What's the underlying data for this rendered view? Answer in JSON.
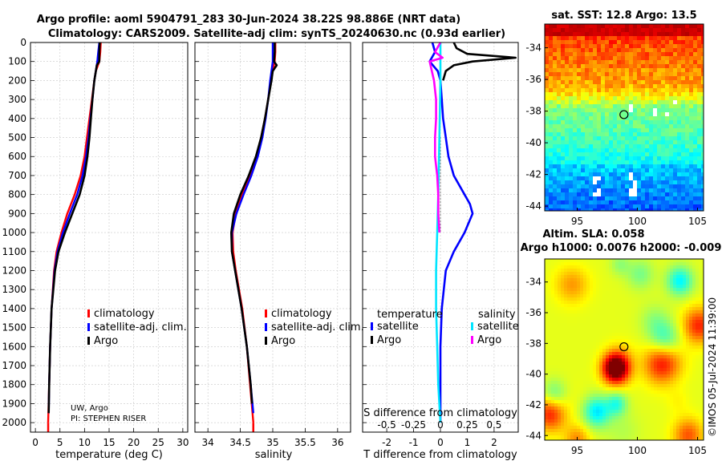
{
  "title": {
    "line1": "Argo profile: aoml 5904791_283 30-Jun-2024 38.22S 98.886E (NRT data)",
    "line2": "Climatology: CARS2009. Satellite-adj clim: synTS_20240630.nc (0.93d earlier)"
  },
  "colors": {
    "climatology": "#ff0000",
    "satellite": "#0000ff",
    "argo": "#000000",
    "sat_temp_diff": "#0000ff",
    "sat_sal_diff": "#00e5ff",
    "argo_sal_diff": "#ff00ff"
  },
  "credit": {
    "line1": "UW, Argo",
    "line2": "PI: STEPHEN RISER"
  },
  "footer": "©IMOS 05-Jul-2024 11:39:00",
  "chart_data": [
    {
      "id": "temperature",
      "type": "line",
      "xlabel": "temperature (deg C)",
      "ylabel": "",
      "xlim": [
        -1,
        31
      ],
      "ylim": [
        2050,
        0
      ],
      "xticks": [
        0,
        5,
        10,
        15,
        20,
        25,
        30
      ],
      "yticks": [
        0,
        100,
        200,
        300,
        400,
        500,
        600,
        700,
        800,
        900,
        1000,
        1100,
        1200,
        1300,
        1400,
        1500,
        1600,
        1700,
        1800,
        1900,
        2000
      ],
      "grid": true,
      "legend": {
        "position": "center-right",
        "entries": [
          "climatology",
          "satellite-adj. clim.",
          "Argo"
        ]
      },
      "series": [
        {
          "name": "climatology",
          "color_key": "climatology",
          "depth": [
            0,
            50,
            100,
            150,
            200,
            300,
            400,
            500,
            600,
            700,
            800,
            900,
            1000,
            1100,
            1200,
            1400,
            1600,
            1800,
            2000
          ],
          "values": [
            13.3,
            13.2,
            13.0,
            12.3,
            12.0,
            11.5,
            11.0,
            10.5,
            10.0,
            9.2,
            8.0,
            6.5,
            5.3,
            4.3,
            3.8,
            3.3,
            3.0,
            2.8,
            2.6
          ]
        },
        {
          "name": "satellite-adj. clim.",
          "color_key": "satellite",
          "depth": [
            0,
            50,
            100,
            150,
            200,
            300,
            400,
            500,
            600,
            700,
            800,
            900,
            1000,
            1100,
            1200,
            1400,
            1600,
            1800,
            1950
          ],
          "values": [
            13.0,
            12.8,
            12.6,
            12.3,
            12.0,
            11.6,
            11.2,
            10.8,
            10.3,
            9.6,
            8.5,
            7.0,
            5.6,
            4.5,
            3.9,
            3.3,
            3.0,
            2.8,
            2.7
          ]
        },
        {
          "name": "Argo",
          "color_key": "argo",
          "depth": [
            0,
            50,
            100,
            120,
            150,
            200,
            300,
            400,
            500,
            600,
            700,
            800,
            900,
            1000,
            1100,
            1200,
            1400,
            1600,
            1800,
            1950
          ],
          "values": [
            13.1,
            13.0,
            13.0,
            12.5,
            12.3,
            12.0,
            11.6,
            11.3,
            11.0,
            10.6,
            10.0,
            9.0,
            7.5,
            6.0,
            4.7,
            4.0,
            3.3,
            3.0,
            2.8,
            2.7
          ]
        }
      ]
    },
    {
      "id": "salinity",
      "type": "line",
      "xlabel": "salinity",
      "ylabel": "",
      "xlim": [
        33.8,
        36.2
      ],
      "ylim": [
        2050,
        0
      ],
      "xticks": [
        34,
        34.5,
        35,
        35.5,
        36
      ],
      "grid": true,
      "legend": {
        "position": "center-right",
        "entries": [
          "climatology",
          "satellite-adj. clim.",
          "Argo"
        ]
      },
      "series": [
        {
          "name": "climatology",
          "color_key": "climatology",
          "depth": [
            0,
            50,
            100,
            150,
            200,
            300,
            400,
            500,
            600,
            700,
            800,
            900,
            1000,
            1100,
            1200,
            1400,
            1600,
            1800,
            2000
          ],
          "values": [
            35.04,
            35.04,
            35.03,
            35.0,
            34.97,
            34.93,
            34.88,
            34.82,
            34.75,
            34.65,
            34.53,
            34.43,
            34.38,
            34.39,
            34.43,
            34.53,
            34.6,
            34.65,
            34.7
          ]
        },
        {
          "name": "satellite-adj. clim.",
          "color_key": "satellite",
          "depth": [
            0,
            50,
            100,
            150,
            200,
            300,
            400,
            500,
            600,
            700,
            800,
            900,
            1000,
            1100,
            1200,
            1400,
            1600,
            1800,
            1950
          ],
          "values": [
            35.0,
            35.0,
            35.0,
            34.98,
            34.96,
            34.93,
            34.89,
            34.84,
            34.77,
            34.67,
            34.55,
            34.44,
            34.37,
            34.37,
            34.42,
            34.52,
            34.6,
            34.66,
            34.7
          ]
        },
        {
          "name": "Argo",
          "color_key": "argo",
          "depth": [
            0,
            50,
            100,
            120,
            150,
            200,
            300,
            400,
            500,
            600,
            700,
            800,
            900,
            1000,
            1100,
            1200,
            1400,
            1600,
            1800,
            1900
          ],
          "values": [
            35.03,
            35.03,
            35.02,
            35.06,
            35.0,
            34.98,
            34.93,
            34.88,
            34.82,
            34.74,
            34.63,
            34.5,
            34.4,
            34.36,
            34.37,
            34.42,
            34.52,
            34.6,
            34.66,
            34.68
          ]
        }
      ]
    },
    {
      "id": "difference",
      "type": "line",
      "xlabel": "T difference from climatology",
      "x2label": "S difference from climatology",
      "xlim": [
        -2.9,
        2.9
      ],
      "ylim": [
        2050,
        0
      ],
      "xticks": [
        -2,
        -1,
        0,
        1,
        2
      ],
      "xticklabels": [
        "-2",
        "-1",
        "0",
        "1",
        "2"
      ],
      "x2ticklabels": [
        "-0.5",
        "-0.25",
        "0",
        "0.25",
        "0.5"
      ],
      "grid": true,
      "legend": {
        "position": "center",
        "temperature_title": "temperature",
        "salinity_title": "salinity",
        "entries": [
          "satellite",
          "Argo",
          "satellite",
          "Argo"
        ]
      },
      "series": [
        {
          "name": "temperature satellite",
          "color_key": "sat_temp_diff",
          "depth": [
            0,
            50,
            100,
            150,
            200,
            300,
            400,
            500,
            600,
            700,
            800,
            850,
            900,
            1000,
            1100,
            1200,
            1400,
            1600,
            1800,
            2000
          ],
          "values": [
            -0.3,
            -0.2,
            -0.4,
            -0.1,
            0.0,
            0.05,
            0.1,
            0.2,
            0.3,
            0.5,
            0.9,
            1.1,
            1.2,
            0.9,
            0.5,
            0.2,
            0.05,
            0.0,
            0.0,
            0.0
          ]
        },
        {
          "name": "temperature Argo",
          "color_key": "argo",
          "depth": [
            0,
            30,
            60,
            80,
            100,
            120,
            150,
            200
          ],
          "values": [
            0.5,
            0.6,
            1.0,
            2.8,
            1.2,
            0.5,
            0.2,
            0.1
          ]
        },
        {
          "name": "salinity satellite",
          "color_key": "sat_sal_diff",
          "depth": [
            0,
            200,
            500,
            800,
            1000,
            1200,
            1400,
            1600,
            1800,
            2000
          ],
          "values": [
            0.0,
            0.0,
            -0.01,
            -0.02,
            -0.03,
            -0.04,
            -0.04,
            -0.03,
            -0.02,
            0.0
          ]
        },
        {
          "name": "salinity Argo",
          "color_key": "argo_sal_diff",
          "depth": [
            0,
            50,
            80,
            100,
            150,
            200,
            300,
            400,
            500,
            600,
            700,
            800,
            900,
            1000
          ],
          "values": [
            0.0,
            -0.05,
            0.02,
            -0.1,
            -0.08,
            -0.06,
            -0.04,
            -0.04,
            -0.05,
            -0.05,
            -0.03,
            -0.02,
            -0.02,
            -0.01
          ]
        }
      ]
    },
    {
      "id": "sst_map",
      "type": "heatmap",
      "title": "sat. SST: 12.8 Argo: 13.5",
      "xlim": [
        92.3,
        105.5
      ],
      "ylim": [
        -44.3,
        -32.5
      ],
      "xticks": [
        95,
        100,
        105
      ],
      "yticks": [
        -34,
        -36,
        -38,
        -40,
        -42,
        -44
      ],
      "marker": {
        "lon": 98.886,
        "lat": -38.22
      },
      "value_range": [
        9,
        18
      ]
    },
    {
      "id": "sla_map",
      "type": "heatmap",
      "title_line1": "Altim. SLA: 0.058",
      "title_line2": "Argo h1000: 0.0076 h2000: -0.009",
      "xlim": [
        92.3,
        105.5
      ],
      "ylim": [
        -44.3,
        -32.5
      ],
      "xticks": [
        95,
        100,
        105
      ],
      "yticks": [
        -34,
        -36,
        -38,
        -40,
        -42,
        -44
      ],
      "marker": {
        "lon": 98.886,
        "lat": -38.22
      }
    }
  ]
}
